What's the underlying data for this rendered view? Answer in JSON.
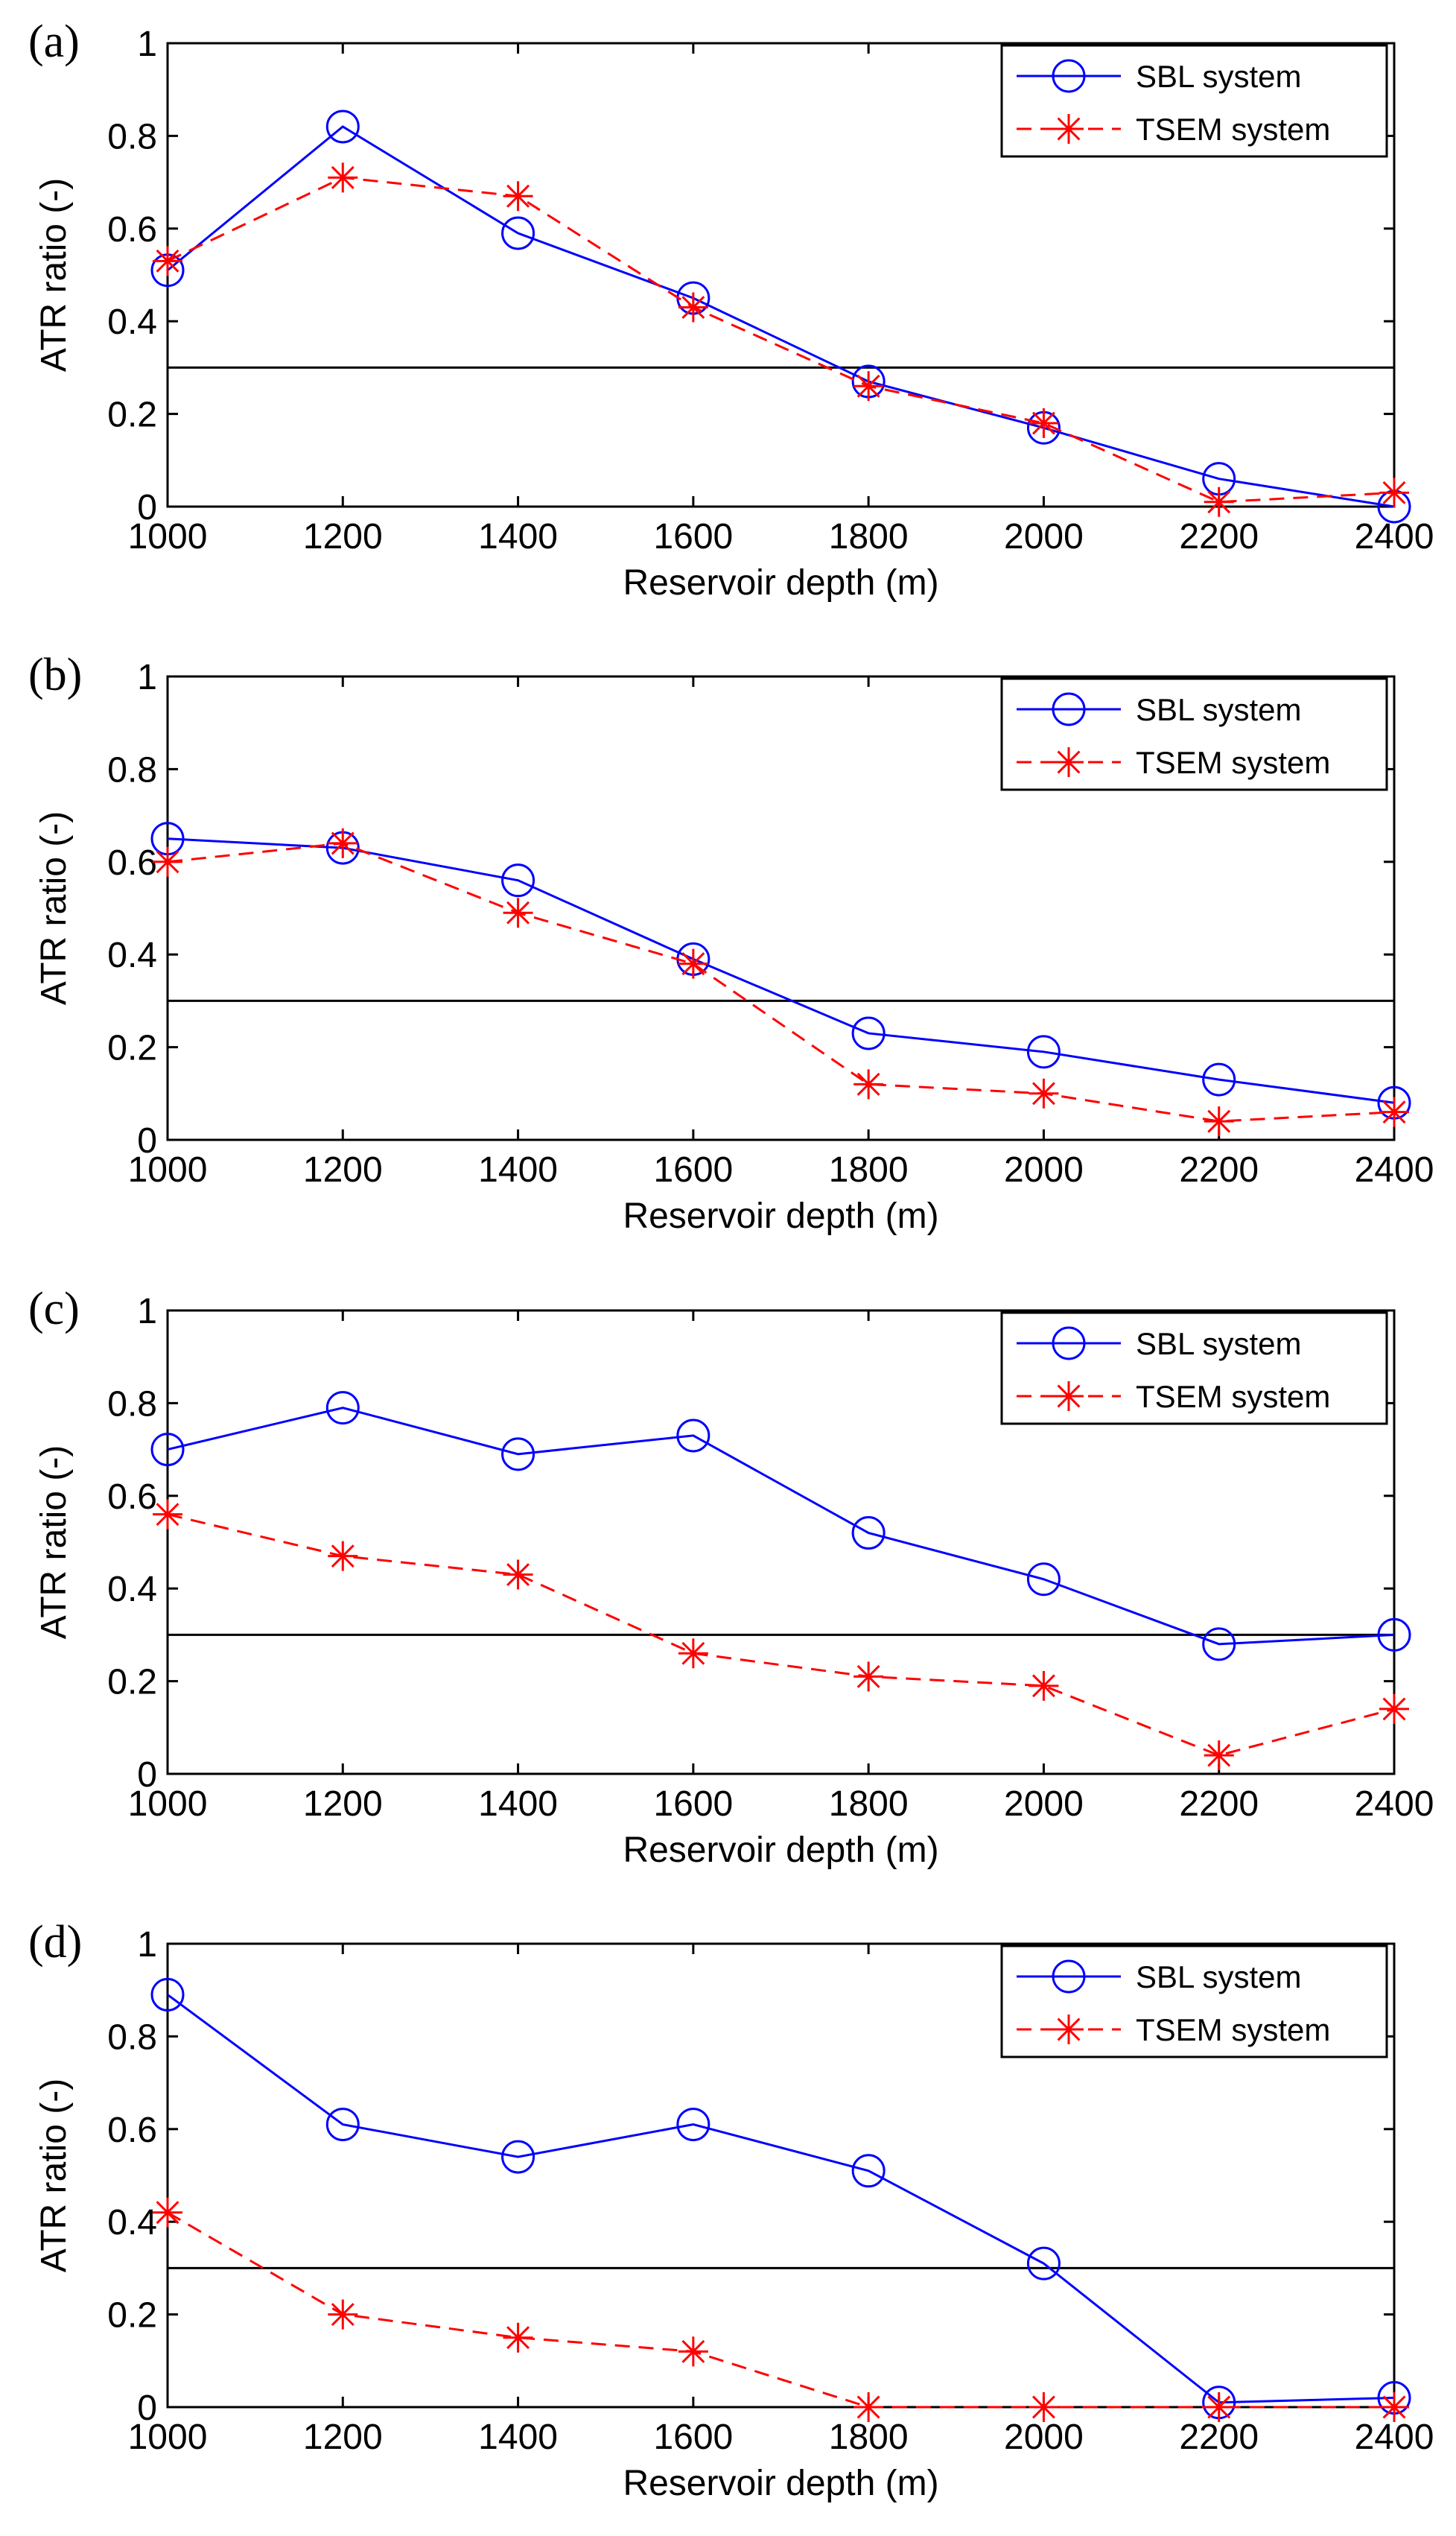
{
  "chart_data": [
    {
      "type": "line",
      "panel_label": "(a)",
      "xlabel": "Reservoir depth (m)",
      "ylabel": "ATR ratio (-)",
      "xlim": [
        1000,
        2400
      ],
      "ylim": [
        0,
        1
      ],
      "x": [
        1000,
        1200,
        1400,
        1600,
        1800,
        2000,
        2200,
        2400
      ],
      "x_ticks": [
        "1000",
        "1200",
        "1400",
        "1600",
        "1800",
        "2000",
        "2200",
        "2400"
      ],
      "y_ticks": [
        "0",
        "0.2",
        "0.4",
        "0.6",
        "0.8",
        "1"
      ],
      "threshold": 0.3,
      "legend": "top-right",
      "series": [
        {
          "name": "SBL system",
          "color": "#0000ff",
          "marker": "circle",
          "style": "solid",
          "values": [
            0.51,
            0.82,
            0.59,
            0.45,
            0.27,
            0.17,
            0.06,
            0.0
          ]
        },
        {
          "name": "TSEM system",
          "color": "#ff0000",
          "marker": "star",
          "style": "dashed",
          "values": [
            0.53,
            0.71,
            0.67,
            0.43,
            0.26,
            0.18,
            0.01,
            0.03
          ]
        }
      ]
    },
    {
      "type": "line",
      "panel_label": "(b)",
      "xlabel": "Reservoir depth (m)",
      "ylabel": "ATR ratio (-)",
      "xlim": [
        1000,
        2400
      ],
      "ylim": [
        0,
        1
      ],
      "x": [
        1000,
        1200,
        1400,
        1600,
        1800,
        2000,
        2200,
        2400
      ],
      "x_ticks": [
        "1000",
        "1200",
        "1400",
        "1600",
        "1800",
        "2000",
        "2200",
        "2400"
      ],
      "y_ticks": [
        "0",
        "0.2",
        "0.4",
        "0.6",
        "0.8",
        "1"
      ],
      "threshold": 0.3,
      "legend": "top-right",
      "series": [
        {
          "name": "SBL system",
          "color": "#0000ff",
          "marker": "circle",
          "style": "solid",
          "values": [
            0.65,
            0.63,
            0.56,
            0.39,
            0.23,
            0.19,
            0.13,
            0.08
          ]
        },
        {
          "name": "TSEM system",
          "color": "#ff0000",
          "marker": "star",
          "style": "dashed",
          "values": [
            0.6,
            0.64,
            0.49,
            0.38,
            0.12,
            0.1,
            0.04,
            0.06
          ]
        }
      ]
    },
    {
      "type": "line",
      "panel_label": "(c)",
      "xlabel": "Reservoir depth (m)",
      "ylabel": "ATR ratio (-)",
      "xlim": [
        1000,
        2400
      ],
      "ylim": [
        0,
        1
      ],
      "x": [
        1000,
        1200,
        1400,
        1600,
        1800,
        2000,
        2200,
        2400
      ],
      "x_ticks": [
        "1000",
        "1200",
        "1400",
        "1600",
        "1800",
        "2000",
        "2200",
        "2400"
      ],
      "y_ticks": [
        "0",
        "0.2",
        "0.4",
        "0.6",
        "0.8",
        "1"
      ],
      "threshold": 0.3,
      "legend": "top-right",
      "series": [
        {
          "name": "SBL system",
          "color": "#0000ff",
          "marker": "circle",
          "style": "solid",
          "values": [
            0.7,
            0.79,
            0.69,
            0.73,
            0.52,
            0.42,
            0.28,
            0.3
          ]
        },
        {
          "name": "TSEM system",
          "color": "#ff0000",
          "marker": "star",
          "style": "dashed",
          "values": [
            0.56,
            0.47,
            0.43,
            0.26,
            0.21,
            0.19,
            0.04,
            0.14
          ]
        }
      ]
    },
    {
      "type": "line",
      "panel_label": "(d)",
      "xlabel": "Reservoir depth (m)",
      "ylabel": "ATR ratio (-)",
      "xlim": [
        1000,
        2400
      ],
      "ylim": [
        0,
        1
      ],
      "x": [
        1000,
        1200,
        1400,
        1600,
        1800,
        2000,
        2200,
        2400
      ],
      "x_ticks": [
        "1000",
        "1200",
        "1400",
        "1600",
        "1800",
        "2000",
        "2200",
        "2400"
      ],
      "y_ticks": [
        "0",
        "0.2",
        "0.4",
        "0.6",
        "0.8",
        "1"
      ],
      "threshold": 0.3,
      "legend": "top-right",
      "series": [
        {
          "name": "SBL system",
          "color": "#0000ff",
          "marker": "circle",
          "style": "solid",
          "values": [
            0.89,
            0.61,
            0.54,
            0.61,
            0.51,
            0.31,
            0.01,
            0.02
          ]
        },
        {
          "name": "TSEM system",
          "color": "#ff0000",
          "marker": "star",
          "style": "dashed",
          "values": [
            0.42,
            0.2,
            0.15,
            0.12,
            0.0,
            0.0,
            0.0,
            0.0
          ]
        }
      ]
    }
  ]
}
